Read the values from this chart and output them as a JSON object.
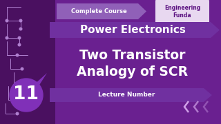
{
  "bg_color": "#6a2090",
  "bg_color_left": "#4a1060",
  "title1": "Power Electronics",
  "title2": "Two Transistor",
  "title3": "Analogy of SCR",
  "badge_text": "Complete Course",
  "brand_line1": "Engineering",
  "brand_line2": "Funda",
  "lecture_label": "Lecture Number",
  "lecture_num": "11",
  "banner_color": "#7030a0",
  "circle_color": "#8030b8",
  "white": "#ffffff",
  "cloud_text_color": "#5a1080",
  "circuit_color": "#b080d0"
}
